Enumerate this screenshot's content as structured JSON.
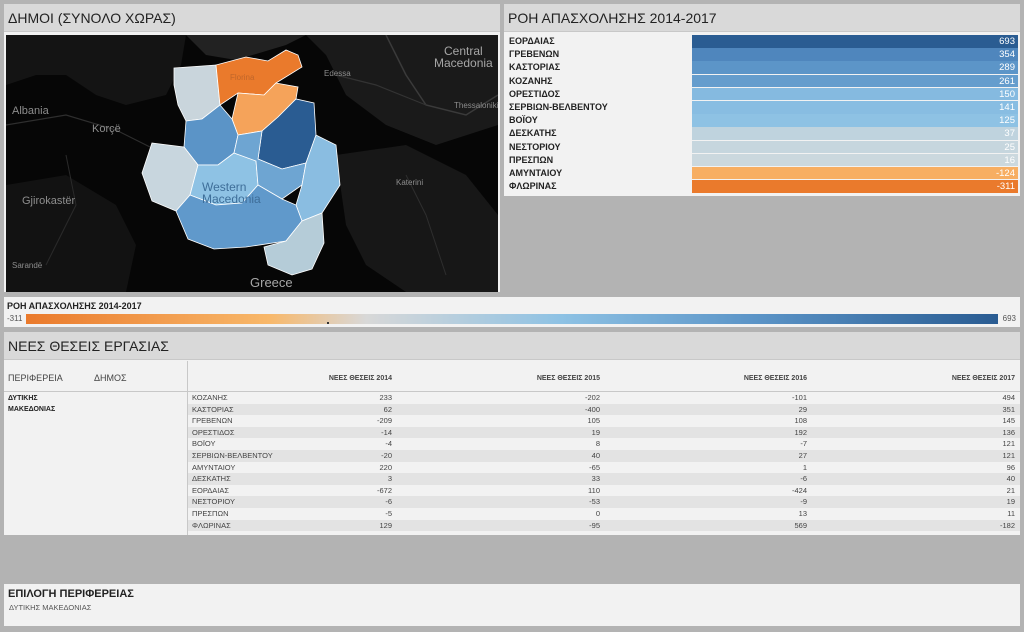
{
  "map_panel": {
    "title": "ΔΗΜΟΙ (ΣΥΝΟΛΟ ΧΩΡΑΣ)",
    "labels": {
      "albania": "Albania",
      "korce": "Korçë",
      "gjirokaster": "Gjirokastër",
      "sarande": "Sarandë",
      "central_macedonia": "Central\nMacedonia",
      "edessa": "Edessa",
      "thessaloniki": "Thessaloniki",
      "katerini": "Katerini",
      "western_macedonia": "Western\nMacedonia",
      "florina": "Florina",
      "greece": "Greece"
    },
    "region_colors": {
      "florina": "#ea7a2c",
      "amyntaio": "#f5a35a",
      "eordaia": "#2a5c92",
      "prespes": "#c9d5dc",
      "kastoria": "#5b94c7",
      "nestorio": "#c8d6de",
      "voio": "#8ec2e4",
      "kozani": "#6ea5d2",
      "servia": "#8abde1",
      "grevena": "#6099cb",
      "deskati": "#b5ccd8"
    }
  },
  "flow_panel": {
    "title": "ΡΟΗ ΑΠΑΣΧΟΛΗΣΗΣ 2014-2017",
    "rows": [
      {
        "name": "ΕΟΡΔΑΙΑΣ",
        "value": "693",
        "color": "#2a5c92"
      },
      {
        "name": "ΓΡΕΒΕΝΩΝ",
        "value": "354",
        "color": "#4f86bd"
      },
      {
        "name": "ΚΑΣΤΟΡΙΑΣ",
        "value": "289",
        "color": "#5c95c8"
      },
      {
        "name": "ΚΟΖΑΝΗΣ",
        "value": "261",
        "color": "#659dcd"
      },
      {
        "name": "ΟΡΕΣΤΙΔΟΣ",
        "value": "150",
        "color": "#85bae0"
      },
      {
        "name": "ΣΕΡΒΙΩΝ-ΒΕΛΒΕΝΤΟΥ",
        "value": "141",
        "color": "#88bde2"
      },
      {
        "name": "ΒΟΪΟΥ",
        "value": "125",
        "color": "#8ec2e4"
      },
      {
        "name": "ΔΕΣΚΑΤΗΣ",
        "value": "37",
        "color": "#bfd3de"
      },
      {
        "name": "ΝΕΣΤΟΡΙΟΥ",
        "value": "25",
        "color": "#c6d6de"
      },
      {
        "name": "ΠΡΕΣΠΩΝ",
        "value": "16",
        "color": "#cbd8de"
      },
      {
        "name": "ΑΜΥΝΤΑΙΟΥ",
        "value": "-124",
        "color": "#f7ae62"
      },
      {
        "name": "ΦΛΩΡΙΝΑΣ",
        "value": "-311",
        "color": "#ea7a2c"
      }
    ]
  },
  "legend": {
    "title": "ΡΟΗ ΑΠΑΣΧΟΛΗΣΗΣ 2014-2017",
    "min": "-311",
    "max": "693"
  },
  "table_panel": {
    "title": "ΝΕΕΣ ΘΕΣΕΙΣ ΕΡΓΑΣΙΑΣ",
    "headers": {
      "region": "ΠΕΡΙΦΕΡΕΙΑ",
      "municipality": "ΔΗΜΟΣ",
      "y2014": "ΝΕΕΣ ΘΕΣΕΙΣ 2014",
      "y2015": "ΝΕΕΣ ΘΕΣΕΙΣ 2015",
      "y2016": "ΝΕΕΣ ΘΕΣΕΙΣ 2016",
      "y2017": "ΝΕΕΣ ΘΕΣΕΙΣ 2017"
    },
    "region": "ΔΥΤΙΚΗΣ ΜΑΚΕΔΟΝΙΑΣ",
    "rows": [
      {
        "name": "ΚΟΖΑΝΗΣ",
        "y2014": "233",
        "y2015": "-202",
        "y2016": "-101",
        "y2017": "494"
      },
      {
        "name": "ΚΑΣΤΟΡΙΑΣ",
        "y2014": "62",
        "y2015": "-400",
        "y2016": "29",
        "y2017": "351"
      },
      {
        "name": "ΓΡΕΒΕΝΩΝ",
        "y2014": "-209",
        "y2015": "105",
        "y2016": "108",
        "y2017": "145"
      },
      {
        "name": "ΟΡΕΣΤΙΔΟΣ",
        "y2014": "-14",
        "y2015": "19",
        "y2016": "192",
        "y2017": "136"
      },
      {
        "name": "ΒΟΪΟΥ",
        "y2014": "-4",
        "y2015": "8",
        "y2016": "-7",
        "y2017": "121"
      },
      {
        "name": "ΣΕΡΒΙΩΝ-ΒΕΛΒΕΝΤΟΥ",
        "y2014": "-20",
        "y2015": "40",
        "y2016": "27",
        "y2017": "121"
      },
      {
        "name": "ΑΜΥΝΤΑΙΟΥ",
        "y2014": "220",
        "y2015": "-65",
        "y2016": "1",
        "y2017": "96"
      },
      {
        "name": "ΔΕΣΚΑΤΗΣ",
        "y2014": "3",
        "y2015": "33",
        "y2016": "-6",
        "y2017": "40"
      },
      {
        "name": "ΕΟΡΔΑΙΑΣ",
        "y2014": "-672",
        "y2015": "110",
        "y2016": "-424",
        "y2017": "21"
      },
      {
        "name": "ΝΕΣΤΟΡΙΟΥ",
        "y2014": "-6",
        "y2015": "-53",
        "y2016": "-9",
        "y2017": "19"
      },
      {
        "name": "ΠΡΕΣΠΩΝ",
        "y2014": "-5",
        "y2015": "0",
        "y2016": "13",
        "y2017": "11"
      },
      {
        "name": "ΦΛΩΡΙΝΑΣ",
        "y2014": "129",
        "y2015": "-95",
        "y2016": "569",
        "y2017": "-182"
      }
    ]
  },
  "region_select": {
    "title": "ΕΠΙΛΟΓΗ ΠΕΡΙΦΕΡΕΙΑΣ",
    "value": "ΔΥΤΙΚΗΣ ΜΑΚΕΔΟΝΙΑΣ"
  }
}
